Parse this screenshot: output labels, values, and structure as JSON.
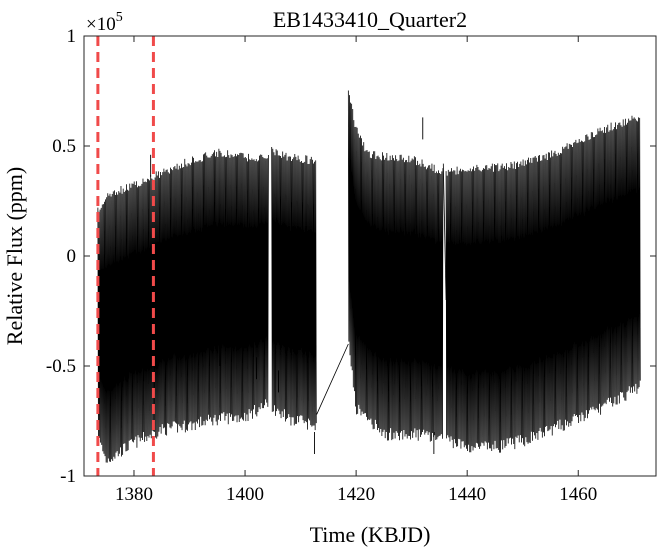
{
  "chart_data": {
    "type": "line",
    "title": "EB1433410_Quarter2",
    "xlabel": "Time (KBJD)",
    "ylabel": "Relative Flux (ppm)",
    "y_multiplier": "×10",
    "y_multiplier_exponent": "5",
    "xlim": [
      1371,
      1474
    ],
    "ylim": [
      -1.0,
      1.0
    ],
    "y_scale_note": "values in units of 1e5 ppm",
    "x_ticks": [
      1380,
      1400,
      1420,
      1440,
      1460
    ],
    "x_tick_labels": [
      "1380",
      "1400",
      "1420",
      "1440",
      "1460"
    ],
    "y_ticks": [
      -1,
      -0.5,
      0,
      0.5,
      1
    ],
    "y_tick_labels": [
      "-1",
      "-0.5",
      "0",
      "0.5",
      "1"
    ],
    "series_color": "#000000",
    "marker_color": "#f04a4a",
    "vertical_markers_x": [
      1373.5,
      1383.5
    ],
    "grid": false,
    "series": [
      {
        "segments": [
          {
            "x_range": [
              1373.5,
              1404.3
            ],
            "upper_envelope": [
              [
                1373.5,
                0.22
              ],
              [
                1375,
                0.3
              ],
              [
                1380,
                0.34
              ],
              [
                1385,
                0.4
              ],
              [
                1390,
                0.45
              ],
              [
                1395,
                0.49
              ],
              [
                1400,
                0.47
              ],
              [
                1404.3,
                0.46
              ]
            ],
            "lower_envelope": [
              [
                1373.5,
                -0.85
              ],
              [
                1375,
                -0.96
              ],
              [
                1380,
                -0.88
              ],
              [
                1385,
                -0.82
              ],
              [
                1390,
                -0.8
              ],
              [
                1395,
                -0.77
              ],
              [
                1400,
                -0.76
              ],
              [
                1404.3,
                -0.7
              ]
            ]
          },
          {
            "x_range": [
              1404.8,
              1412.9
            ],
            "upper_envelope": [
              [
                1404.8,
                0.5
              ],
              [
                1408,
                0.47
              ],
              [
                1412.9,
                0.45
              ]
            ],
            "lower_envelope": [
              [
                1404.8,
                -0.72
              ],
              [
                1408,
                -0.77
              ],
              [
                1412.9,
                -0.8
              ]
            ]
          },
          {
            "x_range": [
              1418.6,
              1435.7
            ],
            "upper_envelope": [
              [
                1418.6,
                0.76
              ],
              [
                1420,
                0.6
              ],
              [
                1422,
                0.48
              ],
              [
                1426,
                0.47
              ],
              [
                1430,
                0.46
              ],
              [
                1435.7,
                0.4
              ]
            ],
            "lower_envelope": [
              [
                1418.6,
                -0.4
              ],
              [
                1420,
                -0.72
              ],
              [
                1425,
                -0.84
              ],
              [
                1430,
                -0.84
              ],
              [
                1435.7,
                -0.85
              ]
            ]
          },
          {
            "x_range": [
              1436.2,
              1471.2
            ],
            "upper_envelope": [
              [
                1436.2,
                0.4
              ],
              [
                1440,
                0.42
              ],
              [
                1445,
                0.42
              ],
              [
                1450,
                0.44
              ],
              [
                1455,
                0.48
              ],
              [
                1460,
                0.54
              ],
              [
                1465,
                0.6
              ],
              [
                1471.2,
                0.65
              ]
            ],
            "lower_envelope": [
              [
                1436.2,
                -0.86
              ],
              [
                1440,
                -0.9
              ],
              [
                1445,
                -0.9
              ],
              [
                1450,
                -0.87
              ],
              [
                1455,
                -0.82
              ],
              [
                1460,
                -0.77
              ],
              [
                1465,
                -0.71
              ],
              [
                1471.2,
                -0.62
              ]
            ]
          }
        ],
        "connectors": [
          [
            [
              1412.9,
              -0.72
            ],
            [
              1418.6,
              -0.4
            ]
          ],
          [
            [
              1435.7,
              0.42
            ],
            [
              1436.2,
              -0.2
            ]
          ]
        ],
        "outliers": [
          [
            1383.0,
            0.46
          ],
          [
            1395.5,
            -0.5
          ],
          [
            1402.0,
            -0.56
          ],
          [
            1406.0,
            -0.62
          ],
          [
            1412.5,
            -0.9
          ],
          [
            1432.0,
            0.63
          ],
          [
            1434.0,
            -0.9
          ],
          [
            1446.0,
            -0.56
          ],
          [
            1450.0,
            -0.38
          ],
          [
            1462.5,
            -0.38
          ]
        ]
      }
    ]
  }
}
